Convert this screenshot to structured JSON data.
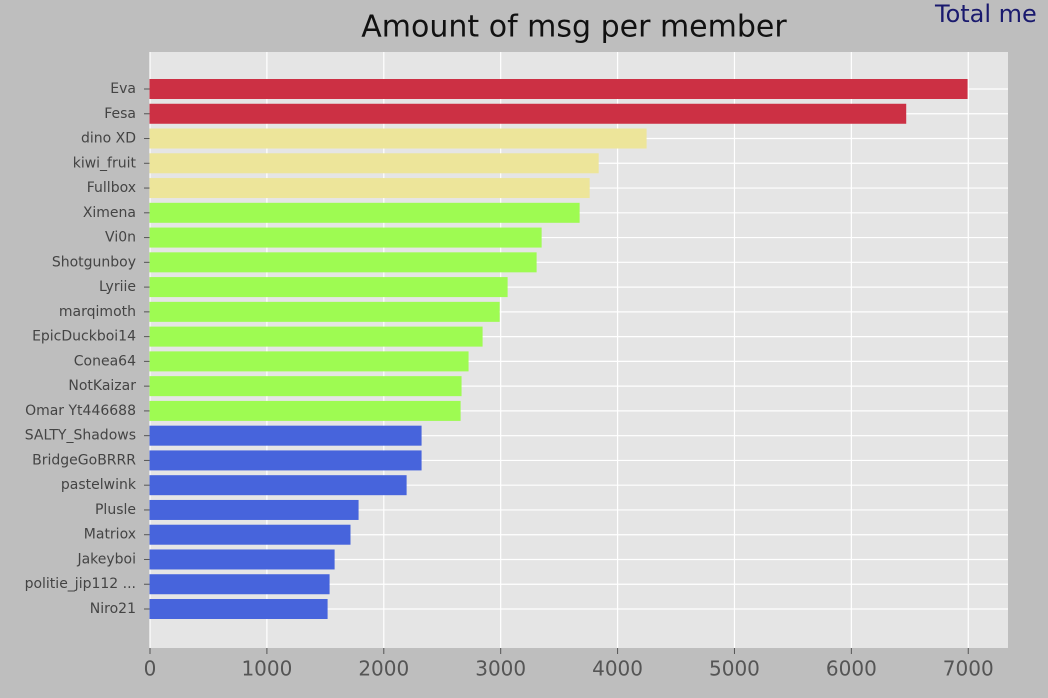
{
  "chart_data": {
    "type": "hbar",
    "title": "Amount of msg per member",
    "annotation": "Total me",
    "categories": [
      "Eva",
      "Fesa",
      "dino XD",
      "kiwi_fruit",
      "Fullbox",
      "Ximena",
      "Vi0n",
      "Shotgunboy",
      "Lyriie",
      "marqimoth",
      "EpicDuckboi14",
      "Conea64",
      "NotKaizar",
      "Omar Yt446688",
      "SALTY_Shadows",
      "BridgeGoBRRR",
      "pastelwink",
      "Plusle",
      "Matriox",
      "Jakeyboi",
      "politie_jip112 ...",
      "Niro21"
    ],
    "values": [
      6990,
      6465,
      4244,
      3834,
      3757,
      3671,
      3346,
      3303,
      3055,
      2987,
      2841,
      2721,
      2661,
      2653,
      2319,
      2319,
      2191,
      1780,
      1711,
      1575,
      1532,
      1515
    ],
    "colors": [
      "#cc3044",
      "#cc3044",
      "#ede59a",
      "#ede59a",
      "#ede59a",
      "#9efb52",
      "#9efb52",
      "#9efb52",
      "#9efb52",
      "#9efb52",
      "#9efb52",
      "#9efb52",
      "#9efb52",
      "#9efb52",
      "#4764dc",
      "#4764dc",
      "#4764dc",
      "#4764dc",
      "#4764dc",
      "#4764dc",
      "#4764dc",
      "#4764dc"
    ],
    "xlim": [
      0,
      7340
    ],
    "xticks": [
      0,
      1000,
      2000,
      3000,
      4000,
      5000,
      6000,
      7000
    ],
    "grid": true
  }
}
